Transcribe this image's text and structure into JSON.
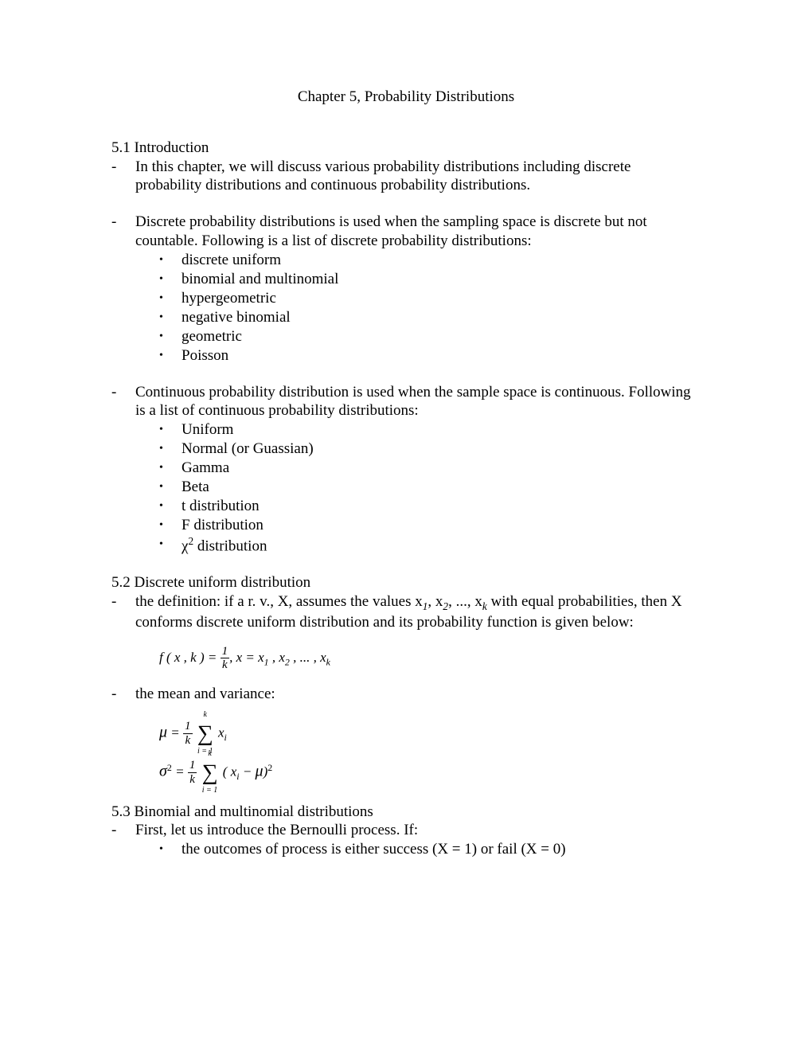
{
  "title": "Chapter 5, Probability Distributions",
  "s51": {
    "head": "5.1 Introduction",
    "p1": "In this chapter, we will discuss various probability distributions including discrete probability distributions and continuous probability distributions.",
    "p2": "Discrete probability distributions is used when the sampling space is discrete but not countable. Following is a list of discrete probability distributions:",
    "list1": {
      "a": "discrete uniform",
      "b": "binomial and multinomial",
      "c": "hypergeometric",
      "d": "negative binomial",
      "e": "geometric",
      "f": "Poisson"
    },
    "p3": "Continuous probability distribution is used when the sample space is continuous. Following is a list of continuous probability distributions:",
    "list2": {
      "a": "Uniform",
      "b": "Normal (or Guassian)",
      "c": "Gamma",
      "d": "Beta",
      "e": "t distribution",
      "f": "F distribution",
      "g_pre": "χ",
      "g_sup": "2",
      "g_post": " distribution"
    }
  },
  "s52": {
    "head": "5.2 Discrete uniform distribution",
    "p1_pre": "the definition: if a r. v., X, assumes the values x",
    "p1_s1": "1",
    "p1_m1": ", x",
    "p1_s2": "2",
    "p1_m2": ", ..., x",
    "p1_s3": "k",
    "p1_post": " with equal probabilities, then X conforms discrete uniform distribution and its probability function is given below:",
    "formula1": {
      "lhs": "f ( x , k ) = ",
      "num": "1",
      "den": "k",
      "rhs_pre": ",    x = x",
      "s1": "1",
      "m1": " , x",
      "s2": "2",
      "m2": " , ... , x",
      "s3": "k"
    },
    "p2": "the mean and variance:",
    "mv": {
      "mu": "μ",
      "eq": " = ",
      "num": "1",
      "den": "k",
      "sum_top": "k",
      "sum_bot": "i = 1",
      "xi_x": "x",
      "xi_i": "i",
      "sigma": "σ",
      "sup2": "2",
      "term_open": "( x",
      "term_i": "i",
      "term_mid": " − ",
      "term_mu": "μ",
      "term_close": ")"
    }
  },
  "s53": {
    "head": "5.3 Binomial and multinomial distributions",
    "p1": "First, let us introduce the Bernoulli process. If:",
    "b1": "the outcomes of process is either success (X = 1) or fail (X = 0)"
  }
}
